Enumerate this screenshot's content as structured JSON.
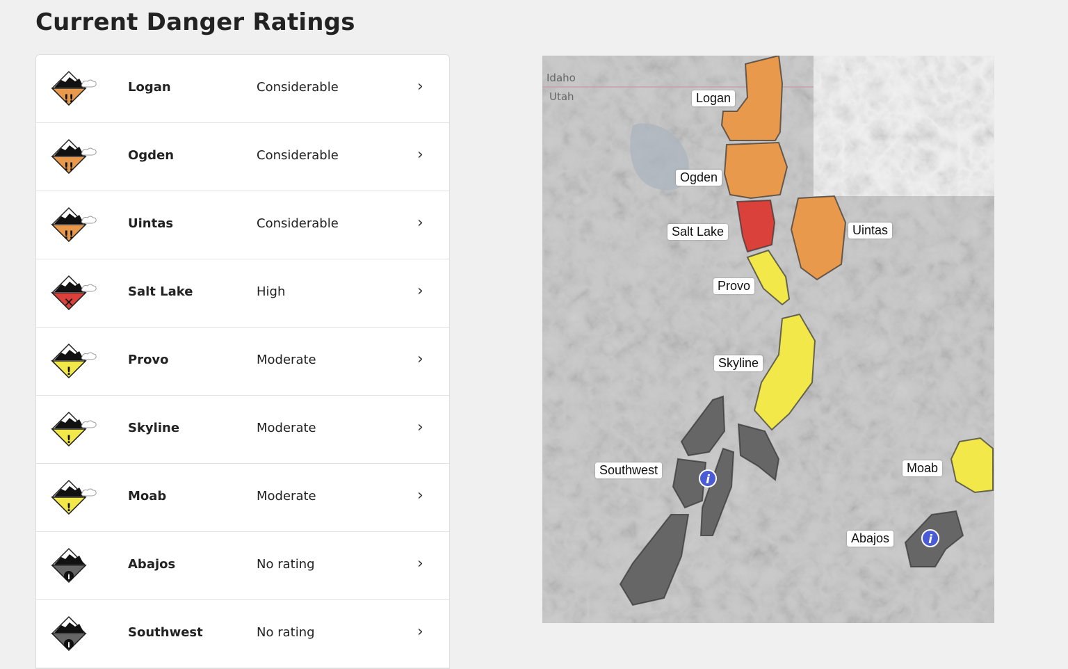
{
  "page_title": "Current Danger Ratings",
  "colors": {
    "considerable": "#e8994c",
    "high": "#d9413a",
    "moderate": "#f2e84a",
    "none": "#666666"
  },
  "zones": [
    {
      "name": "Logan",
      "rating": "Considerable",
      "level": "considerable"
    },
    {
      "name": "Ogden",
      "rating": "Considerable",
      "level": "considerable"
    },
    {
      "name": "Uintas",
      "rating": "Considerable",
      "level": "considerable"
    },
    {
      "name": "Salt Lake",
      "rating": "High",
      "level": "high"
    },
    {
      "name": "Provo",
      "rating": "Moderate",
      "level": "moderate"
    },
    {
      "name": "Skyline",
      "rating": "Moderate",
      "level": "moderate"
    },
    {
      "name": "Moab",
      "rating": "Moderate",
      "level": "moderate"
    },
    {
      "name": "Abajos",
      "rating": "No rating",
      "level": "none"
    },
    {
      "name": "Southwest",
      "rating": "No rating",
      "level": "none"
    }
  ],
  "map": {
    "state_labels": [
      "Idaho",
      "Utah"
    ],
    "labels": {
      "logan": "Logan",
      "ogden": "Ogden",
      "salt_lake": "Salt Lake",
      "uintas": "Uintas",
      "provo": "Provo",
      "skyline": "Skyline",
      "southwest": "Southwest",
      "moab": "Moab",
      "abajos": "Abajos"
    }
  },
  "chevron": "›"
}
